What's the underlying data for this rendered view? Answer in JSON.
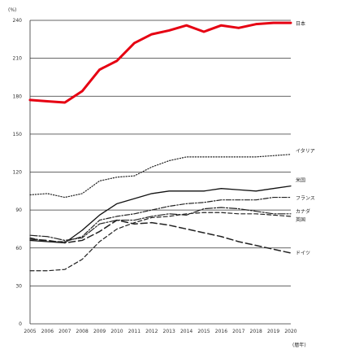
{
  "chart_data": {
    "type": "line",
    "title": "",
    "y_unit_label": "(%)",
    "x_unit_label": "(暦年)",
    "xlabel": "",
    "ylabel": "",
    "ylim": [
      0,
      240
    ],
    "y_ticks": [
      0,
      30,
      60,
      90,
      120,
      150,
      180,
      210,
      240
    ],
    "x": [
      2005,
      2006,
      2007,
      2008,
      2009,
      2010,
      2011,
      2012,
      2013,
      2014,
      2015,
      2016,
      2017,
      2018,
      2019,
      2020
    ],
    "grid": "horizontal",
    "series": [
      {
        "name": "日本",
        "color": "#e60012",
        "dash": "solid",
        "width": 3,
        "values": [
          177,
          176,
          175,
          184,
          201,
          208,
          222,
          229,
          232,
          236,
          231,
          236,
          234,
          237,
          238,
          238
        ]
      },
      {
        "name": "イタリア",
        "color": "#222222",
        "dash": "dot",
        "width": 1.2,
        "values": [
          102,
          103,
          100,
          103,
          113,
          116,
          117,
          124,
          129,
          132,
          132,
          132,
          132,
          132,
          133,
          134
        ]
      },
      {
        "name": "米国",
        "color": "#111111",
        "dash": "solid",
        "width": 1.3,
        "values": [
          66,
          65,
          64,
          74,
          86,
          95,
          99,
          103,
          105,
          105,
          105,
          107,
          106,
          105,
          107,
          109
        ]
      },
      {
        "name": "フランス",
        "color": "#222222",
        "dash": "dashdot",
        "width": 1.2,
        "values": [
          68,
          65,
          65,
          69,
          82,
          85,
          87,
          90,
          93,
          95,
          96,
          98,
          98,
          98,
          100,
          100
        ]
      },
      {
        "name": "カナダ",
        "color": "#222222",
        "dash": "longdashdot",
        "width": 1.2,
        "values": [
          70,
          69,
          66,
          68,
          79,
          82,
          82,
          85,
          87,
          86,
          91,
          92,
          91,
          89,
          87,
          87
        ]
      },
      {
        "name": "英国",
        "color": "#222222",
        "dash": "dash",
        "width": 1.2,
        "values": [
          42,
          42,
          43,
          51,
          65,
          75,
          80,
          84,
          85,
          87,
          88,
          88,
          87,
          87,
          86,
          85
        ]
      },
      {
        "name": "ドイツ",
        "color": "#222222",
        "dash": "longdash",
        "width": 1.5,
        "values": [
          67,
          66,
          64,
          66,
          73,
          82,
          79,
          80,
          78,
          75,
          72,
          69,
          65,
          62,
          59,
          56
        ]
      }
    ]
  }
}
